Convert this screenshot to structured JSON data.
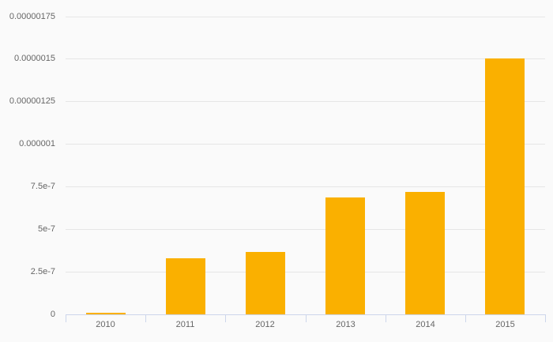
{
  "colors": {
    "background": "#fafafa",
    "bar": "#fab000",
    "gridline": "#e6e6e6",
    "axis_line": "#ccd6eb",
    "tick": "#ccd6eb",
    "label_text": "#666666"
  },
  "chart_data": {
    "type": "bar",
    "title": "",
    "xlabel": "",
    "ylabel": "",
    "legend": false,
    "grid": true,
    "categories": [
      "2010",
      "2011",
      "2012",
      "2013",
      "2014",
      "2015"
    ],
    "values": [
      1e-08,
      3.3e-07,
      3.65e-07,
      6.85e-07,
      7.2e-07,
      1.5e-06
    ],
    "ylim": [
      0,
      1.75e-06
    ],
    "y_tick_interval": 2.5e-07,
    "y_ticks": [
      {
        "value": 0,
        "label": "0"
      },
      {
        "value": 2.5e-07,
        "label": "2.5e-7"
      },
      {
        "value": 5e-07,
        "label": "5e-7"
      },
      {
        "value": 7.5e-07,
        "label": "7.5e-7"
      },
      {
        "value": 1e-06,
        "label": "0.000001"
      },
      {
        "value": 1.25e-06,
        "label": "0.00000125"
      },
      {
        "value": 1.5e-06,
        "label": "0.0000015"
      },
      {
        "value": 1.75e-06,
        "label": "0.00000175"
      }
    ]
  }
}
